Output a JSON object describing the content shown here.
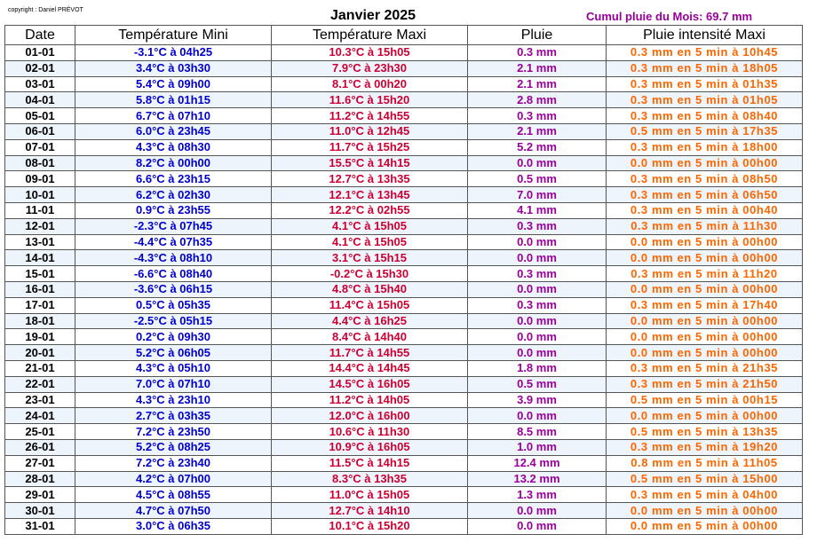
{
  "copyright": "copyright : Daniel PRÉVOT",
  "title": "Janvier 2025",
  "cumul": "Cumul pluie du Mois: 69.7 mm",
  "headers": [
    "Date",
    "Température Mini",
    "Température Maxi",
    "Pluie",
    "Pluie intensité Maxi"
  ],
  "rows": [
    [
      "01-01",
      "-3.1°C à 04h25",
      "10.3°C à 15h05",
      "0.3 mm",
      "0.3 mm en 5 min à 10h45"
    ],
    [
      "02-01",
      "3.4°C à 03h30",
      "7.9°C à 23h30",
      "2.1 mm",
      "0.3 mm en 5 min à 18h05"
    ],
    [
      "03-01",
      "5.4°C à 09h00",
      "8.1°C à 00h20",
      "2.1 mm",
      "0.3 mm en 5 min à 01h35"
    ],
    [
      "04-01",
      "5.8°C à 01h15",
      "11.6°C à 15h20",
      "2.8 mm",
      "0.3 mm en 5 min à 01h05"
    ],
    [
      "05-01",
      "6.7°C à 07h10",
      "11.2°C à 14h55",
      "0.3 mm",
      "0.3 mm en 5 min à 08h40"
    ],
    [
      "06-01",
      "6.0°C à 23h45",
      "11.0°C à 12h45",
      "2.1 mm",
      "0.5 mm en 5 min à 17h35"
    ],
    [
      "07-01",
      "4.3°C à 08h30",
      "11.7°C à 15h25",
      "5.2 mm",
      "0.3 mm en 5 min à 18h00"
    ],
    [
      "08-01",
      "8.2°C à 00h00",
      "15.5°C à 14h15",
      "0.0 mm",
      "0.0 mm en 5 min à 00h00"
    ],
    [
      "09-01",
      "6.6°C à 23h15",
      "12.7°C à 13h35",
      "0.5 mm",
      "0.3 mm en 5 min à 08h50"
    ],
    [
      "10-01",
      "6.2°C à 02h30",
      "12.1°C à 13h45",
      "7.0 mm",
      "0.3 mm en 5 min à 06h50"
    ],
    [
      "11-01",
      "0.9°C à 23h55",
      "12.2°C à 02h55",
      "4.1 mm",
      "0.3 mm en 5 min à 00h40"
    ],
    [
      "12-01",
      "-2.3°C à 07h45",
      "4.1°C à 15h05",
      "0.3 mm",
      "0.3 mm en 5 min à 11h30"
    ],
    [
      "13-01",
      "-4.4°C à 07h35",
      "4.1°C à 15h05",
      "0.0 mm",
      "0.0 mm en 5 min à 00h00"
    ],
    [
      "14-01",
      "-4.3°C à 08h10",
      "3.1°C à 15h15",
      "0.0 mm",
      "0.0 mm en 5 min à 00h00"
    ],
    [
      "15-01",
      "-6.6°C à 08h40",
      "-0.2°C à 15h30",
      "0.3 mm",
      "0.3 mm en 5 min à 11h20"
    ],
    [
      "16-01",
      "-3.6°C à 06h15",
      "4.8°C à 15h40",
      "0.0 mm",
      "0.0 mm en 5 min à 00h00"
    ],
    [
      "17-01",
      "0.5°C à 05h35",
      "11.4°C à 15h05",
      "0.3 mm",
      "0.3 mm en 5 min à 17h40"
    ],
    [
      "18-01",
      "-2.5°C à 05h15",
      "4.4°C à 16h25",
      "0.0 mm",
      "0.0 mm en 5 min à 00h00"
    ],
    [
      "19-01",
      "0.2°C à 09h30",
      "8.4°C à 14h40",
      "0.0 mm",
      "0.0 mm en 5 min à 00h00"
    ],
    [
      "20-01",
      "5.2°C à 06h05",
      "11.7°C à 14h55",
      "0.0 mm",
      "0.0 mm en 5 min à 00h00"
    ],
    [
      "21-01",
      "4.3°C à 05h10",
      "14.4°C à 14h45",
      "1.8 mm",
      "0.3 mm en 5 min à 21h35"
    ],
    [
      "22-01",
      "7.0°C à 07h10",
      "14.5°C à 16h05",
      "0.5 mm",
      "0.3 mm en 5 min à 21h50"
    ],
    [
      "23-01",
      "4.3°C à 23h10",
      "11.2°C à 14h05",
      "3.9 mm",
      "0.5 mm en 5 min à 00h15"
    ],
    [
      "24-01",
      "2.7°C à 03h35",
      "12.0°C à 16h00",
      "0.0 mm",
      "0.0 mm en 5 min à 00h00"
    ],
    [
      "25-01",
      "7.2°C à 23h50",
      "10.6°C à 11h30",
      "8.5 mm",
      "0.5 mm en 5 min à 13h35"
    ],
    [
      "26-01",
      "5.2°C à 08h25",
      "10.9°C à 16h05",
      "1.0 mm",
      "0.3 mm en 5 min à 19h20"
    ],
    [
      "27-01",
      "7.2°C à 23h40",
      "11.5°C à 14h15",
      "12.4 mm",
      "0.8 mm en 5 min à 11h05"
    ],
    [
      "28-01",
      "4.2°C à 07h00",
      "8.3°C à 13h35",
      "13.2 mm",
      "0.5 mm en 5 min à 15h00"
    ],
    [
      "29-01",
      "4.5°C à 08h55",
      "11.0°C à 15h05",
      "1.3 mm",
      "0.3 mm en 5 min à 04h00"
    ],
    [
      "30-01",
      "4.7°C à 07h50",
      "12.7°C à 14h10",
      "0.0 mm",
      "0.0 mm en 5 min à 00h00"
    ],
    [
      "31-01",
      "3.0°C à 06h35",
      "10.1°C à 15h20",
      "0.0 mm",
      "0.0 mm en 5 min à 00h00"
    ]
  ],
  "colors": {
    "date": "#000000",
    "temp_min": "#0000cc",
    "temp_max": "#cc0033",
    "rain": "#990099",
    "rain_intensity": "#ff6600"
  }
}
